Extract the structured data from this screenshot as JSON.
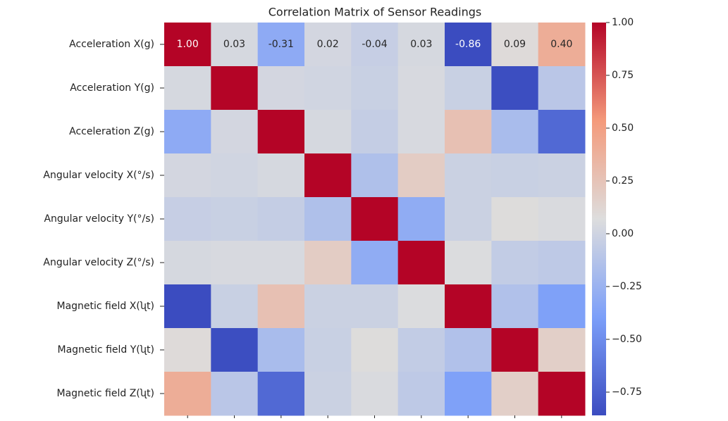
{
  "chart_data": {
    "type": "heatmap",
    "title": "Correlation Matrix of Sensor Readings",
    "categories": [
      "Acceleration X(g)",
      "Acceleration Y(g)",
      "Acceleration Z(g)",
      "Angular velocity X(°/s)",
      "Angular velocity Y(°/s)",
      "Angular velocity Z(°/s)",
      "Magnetic field X(ʯt)",
      "Magnetic field Y(ʯt)",
      "Magnetic field Z(ʯt)"
    ],
    "values": [
      [
        1,
        0.03,
        -0.31,
        0.02,
        -0.04,
        0.03,
        -0.86,
        0.09,
        0.4
      ],
      [
        0.03,
        1,
        0.02,
        0.01,
        -0.03,
        0.04,
        -0.03,
        -0.85,
        -0.1
      ],
      [
        -0.31,
        0.02,
        1,
        0.03,
        -0.05,
        0.04,
        0.27,
        -0.18,
        -0.7
      ],
      [
        0.02,
        0.01,
        0.03,
        1,
        -0.15,
        0.19,
        -0.02,
        -0.03,
        -0.02
      ],
      [
        -0.04,
        -0.03,
        -0.05,
        -0.15,
        1,
        -0.3,
        -0.02,
        0.08,
        0.05
      ],
      [
        0.03,
        0.04,
        0.04,
        0.19,
        -0.3,
        1,
        0.06,
        -0.06,
        -0.08
      ],
      [
        -0.86,
        -0.03,
        0.27,
        -0.02,
        -0.02,
        0.06,
        1,
        -0.14,
        -0.38
      ],
      [
        0.09,
        -0.85,
        -0.18,
        -0.03,
        0.08,
        -0.06,
        -0.14,
        1,
        0.17
      ],
      [
        0.4,
        -0.1,
        -0.7,
        -0.02,
        0.05,
        -0.08,
        -0.38,
        0.17,
        1
      ]
    ],
    "value_labels": [
      [
        "1.00",
        "0.03",
        "-0.31",
        "0.02",
        "-0.04",
        "0.03",
        "-0.86",
        "0.09",
        "0.40"
      ]
    ],
    "colormap": "coolwarm",
    "zlim": [
      -0.86,
      1
    ],
    "zticks": [
      {
        "value": -0.75,
        "label": "−0.75"
      },
      {
        "value": -0.5,
        "label": "−0.50"
      },
      {
        "value": -0.25,
        "label": "−0.25"
      },
      {
        "value": 0,
        "label": "0.00"
      },
      {
        "value": 0.25,
        "label": "0.25"
      },
      {
        "value": 0.5,
        "label": "0.50"
      },
      {
        "value": 0.75,
        "label": "0.75"
      },
      {
        "value": 1,
        "label": "1.00"
      }
    ]
  }
}
